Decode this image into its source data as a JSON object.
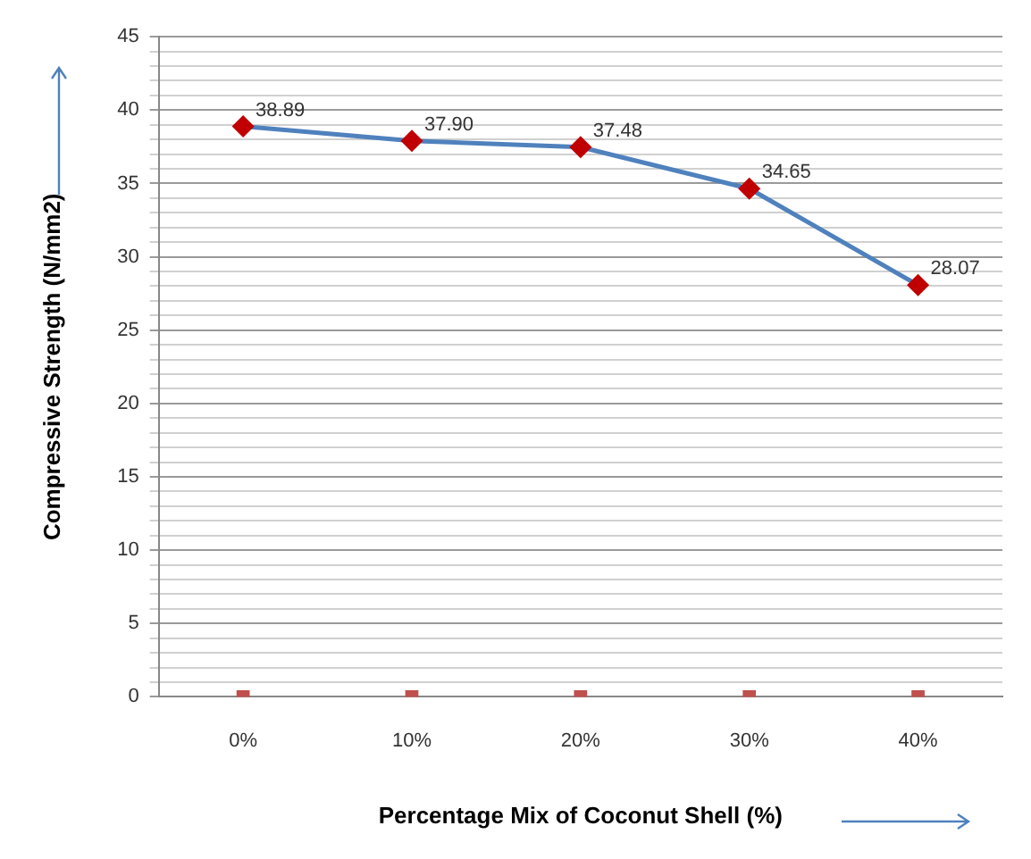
{
  "chart_data": {
    "type": "line",
    "xlabel": "Percentage Mix of Coconut Shell (%)",
    "ylabel": "Compressive Strength (N/mm2)",
    "categories": [
      "0%",
      "10%",
      "20%",
      "30%",
      "40%"
    ],
    "ylim": [
      0,
      45
    ],
    "yticks": [
      0,
      {
        "value": 1,
        "label": null
      },
      {
        "value": 2,
        "label": null
      },
      {
        "value": 3,
        "label": null
      },
      {
        "value": 4,
        "label": null
      },
      5,
      {
        "value": 6,
        "label": null
      },
      {
        "value": 7,
        "label": null
      },
      {
        "value": 8,
        "label": null
      },
      {
        "value": 9,
        "label": null
      },
      10,
      {
        "value": 11,
        "label": null
      },
      {
        "value": 12,
        "label": null
      },
      {
        "value": 13,
        "label": null
      },
      {
        "value": 14,
        "label": null
      },
      15,
      {
        "value": 16,
        "label": null
      },
      {
        "value": 17,
        "label": null
      },
      {
        "value": 18,
        "label": null
      },
      {
        "value": 19,
        "label": null
      },
      20,
      {
        "value": 21,
        "label": null
      },
      {
        "value": 22,
        "label": null
      },
      {
        "value": 23,
        "label": null
      },
      {
        "value": 24,
        "label": null
      },
      25,
      {
        "value": 26,
        "label": null
      },
      {
        "value": 27,
        "label": null
      },
      {
        "value": 28,
        "label": null
      },
      {
        "value": 29,
        "label": null
      },
      30,
      {
        "value": 31,
        "label": null
      },
      {
        "value": 32,
        "label": null
      },
      {
        "value": 33,
        "label": null
      },
      {
        "value": 34,
        "label": null
      },
      35,
      {
        "value": 36,
        "label": null
      },
      {
        "value": 37,
        "label": null
      },
      {
        "value": 38,
        "label": null
      },
      {
        "value": 39,
        "label": null
      },
      40,
      {
        "value": 41,
        "label": null
      },
      {
        "value": 42,
        "label": null
      },
      {
        "value": 43,
        "label": null
      },
      {
        "value": 44,
        "label": null
      },
      45
    ],
    "grid": "y",
    "series": [
      {
        "color": "#4f81bd",
        "colors": [
          "#c00000",
          "#c00000",
          "#c00000",
          "#c00000",
          "#c00000"
        ],
        "marker": "diamond",
        "line_style": "solid",
        "values": [
          38.89,
          37.9,
          37.48,
          34.65,
          28.07
        ],
        "value_labels": [
          "38.89",
          "37.90",
          "37.48",
          "34.65",
          "28.07"
        ]
      },
      {
        "type": "scatter",
        "color": "#c0504d",
        "marker": "square",
        "values": [
          0,
          0,
          0,
          0,
          0
        ]
      }
    ]
  }
}
